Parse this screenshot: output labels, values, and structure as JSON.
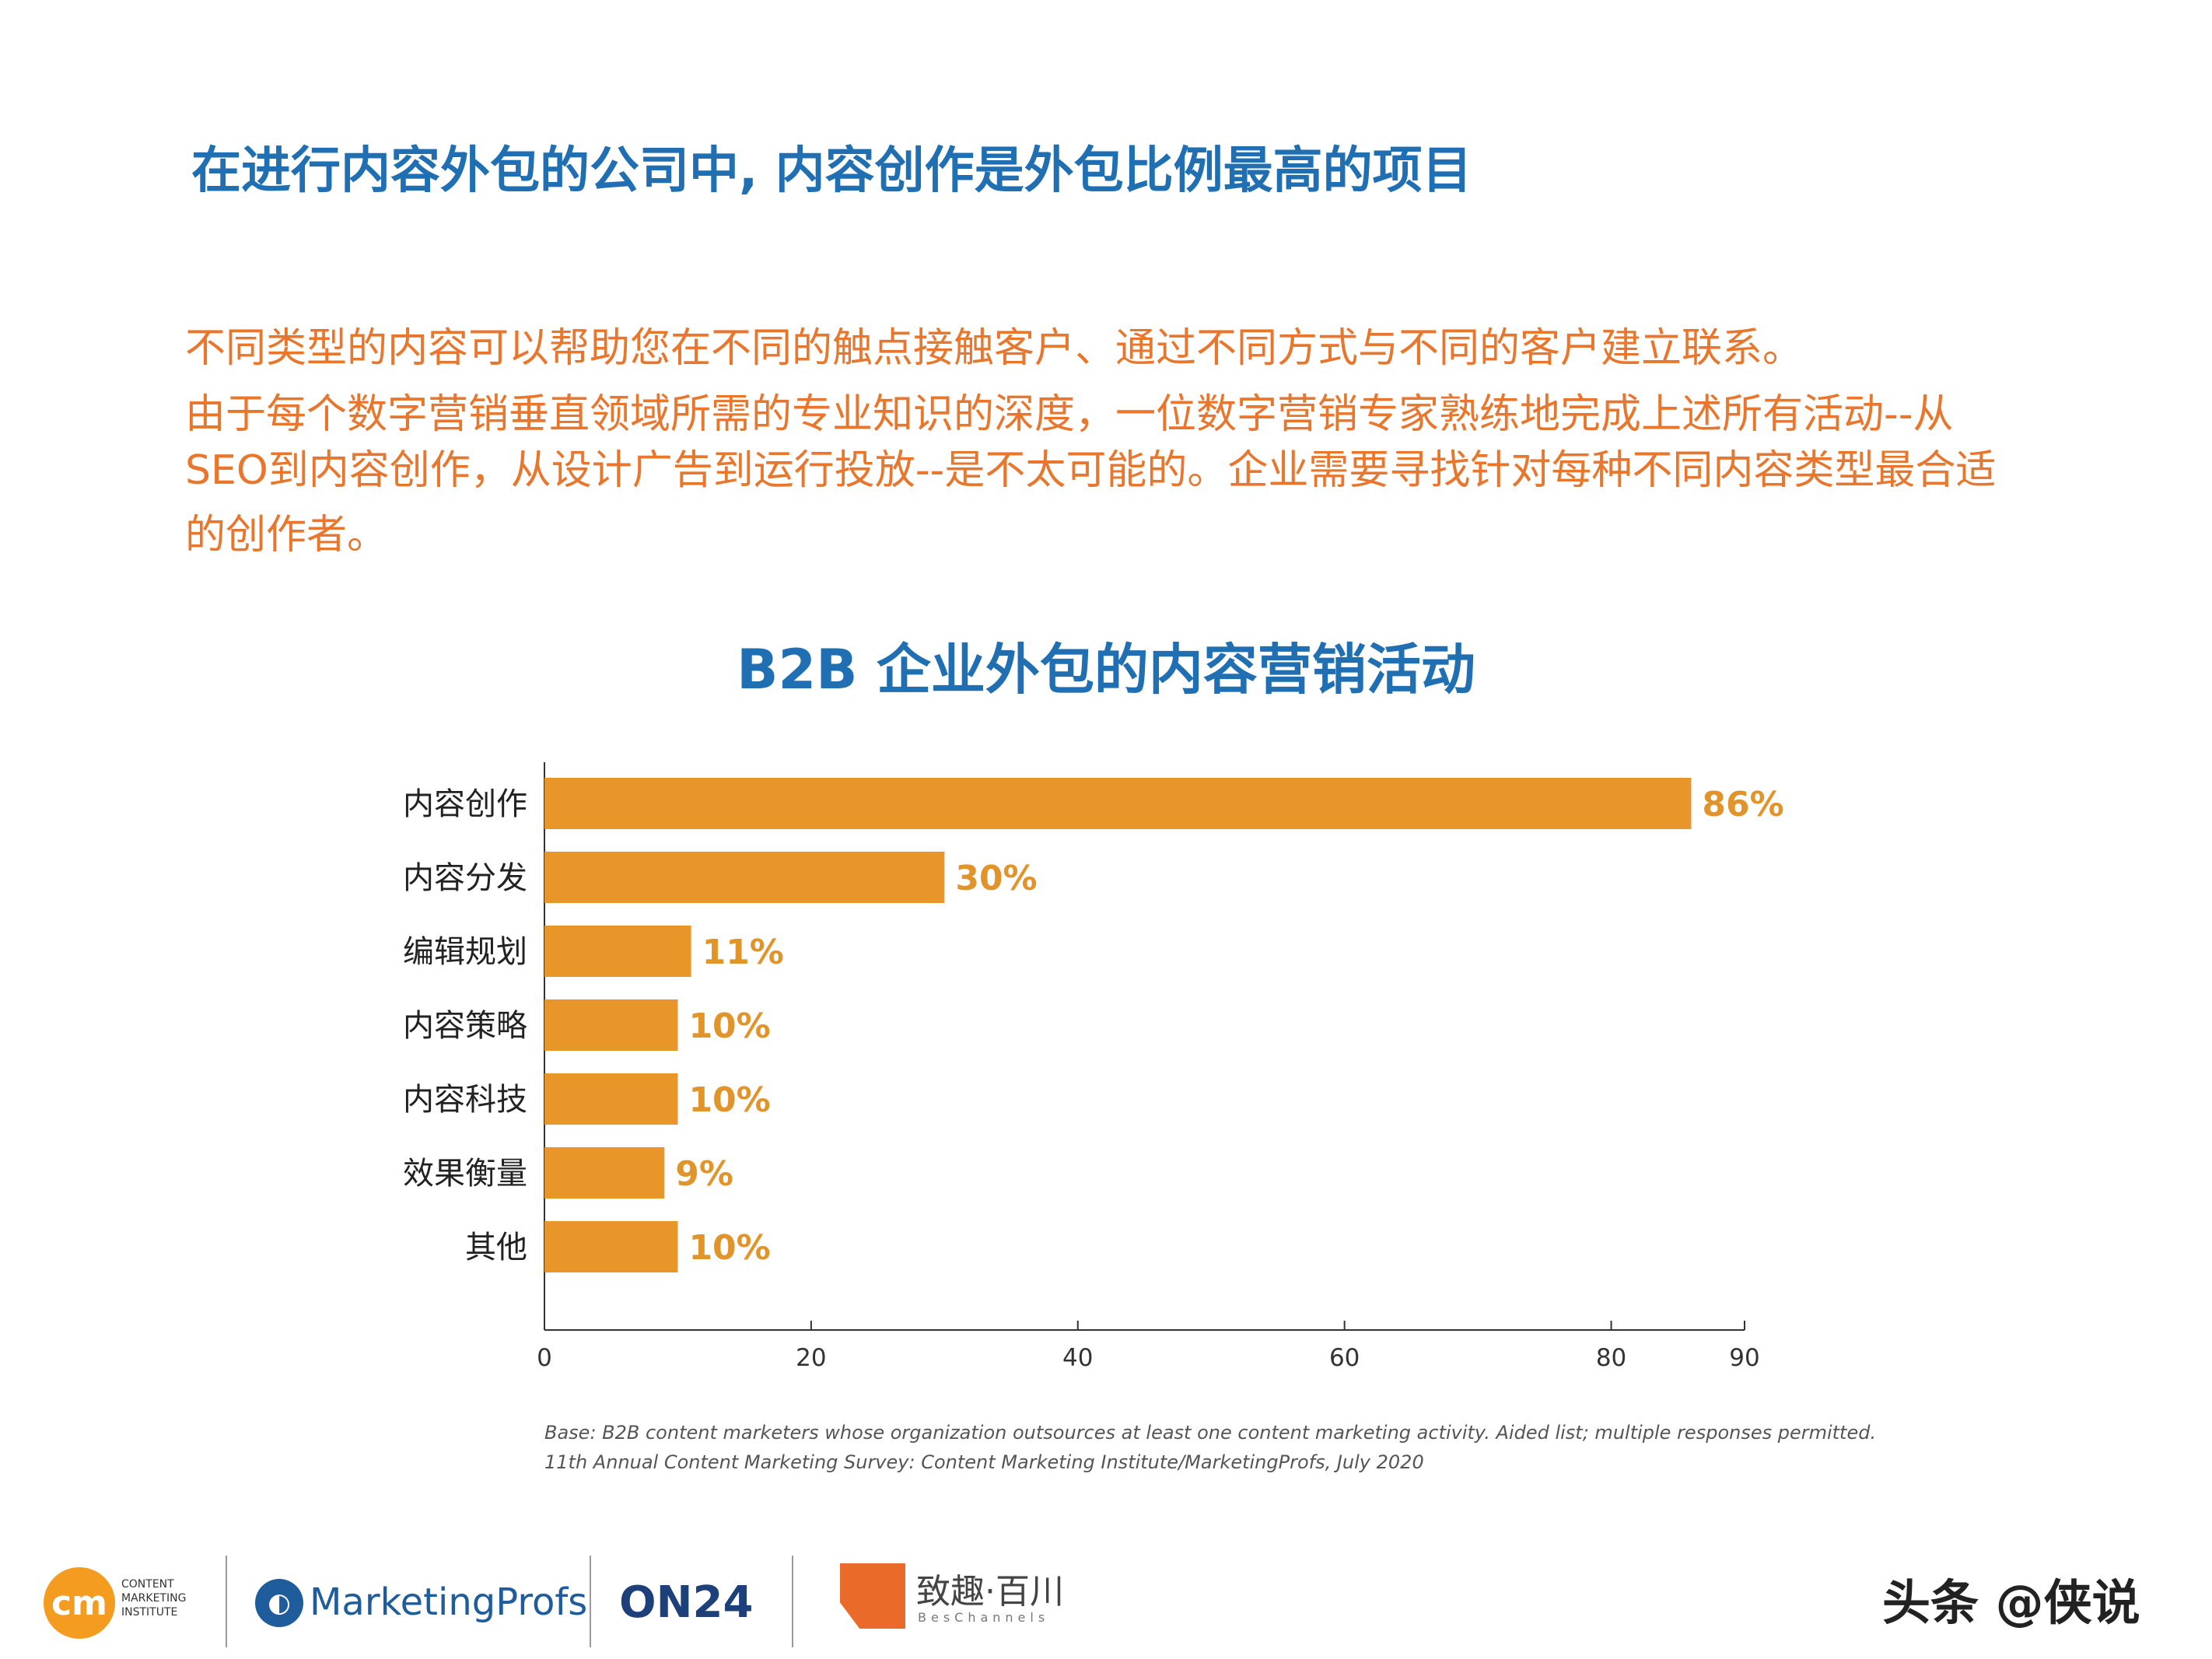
{
  "headline": "在进行内容外包的公司中, 内容创作是外包比例最高的项目",
  "paragraph": {
    "line1": "不同类型的内容可以帮助您在不同的触点接触客户、通过不同方式与不同的客户建立联系。",
    "line2": "由于每个数字营销垂直领域所需的专业知识的深度，一位数字营销专家熟练地完成上述所有活动--从",
    "line3": "SEO到内容创作，从设计广告到运行投放--是不太可能的。企业需要寻找针对每种不同内容类型最合适",
    "line4": "的创作者。"
  },
  "chart_data": {
    "type": "bar",
    "orientation": "horizontal",
    "title": "B2B 企业外包的内容营销活动",
    "categories": [
      "内容创作",
      "内容分发",
      "编辑规划",
      "内容策略",
      "内容科技",
      "效果衡量",
      "其他"
    ],
    "values": [
      86,
      30,
      11,
      10,
      10,
      9,
      10
    ],
    "value_labels": [
      "86%",
      "30%",
      "11%",
      "10%",
      "10%",
      "9%",
      "10%"
    ],
    "xlim": [
      0,
      90
    ],
    "xticks": [
      0,
      20,
      40,
      60,
      80,
      90
    ],
    "grid": false,
    "bar_color": "#e8962a",
    "label_color": "#e0942a"
  },
  "footnote": {
    "line1": "Base: B2B content marketers whose organization outsources at least one content marketing activity. Aided list; multiple responses permitted.",
    "line2": "11th Annual Content Marketing Survey: Content Marketing Institute/MarketingProfs, July 2020"
  },
  "logos": {
    "cmi_badge": "cm",
    "cmi_text": "CONTENT MARKETING INSTITUTE",
    "marketingprofs": "MarketingProfs",
    "on24": "ON24",
    "beschannels": "致趣·百川",
    "beschannels_sub": "BesChannels"
  },
  "watermark": "头条 @侠说",
  "colors": {
    "title_blue": "#1f6fb2",
    "text_orange": "#e8762c"
  }
}
